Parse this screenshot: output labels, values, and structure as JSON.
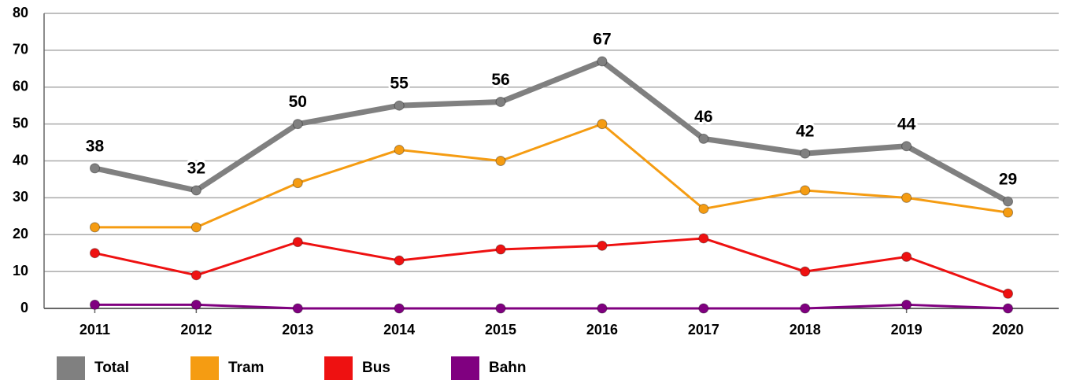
{
  "chart_data": {
    "type": "line",
    "categories": [
      "2011",
      "2012",
      "2013",
      "2014",
      "2015",
      "2016",
      "2017",
      "2018",
      "2019",
      "2020"
    ],
    "series": [
      {
        "name": "Total",
        "color": "#808080",
        "values": [
          38,
          32,
          50,
          55,
          56,
          67,
          46,
          42,
          44,
          29
        ]
      },
      {
        "name": "Tram",
        "color": "#f59c12",
        "values": [
          22,
          22,
          34,
          43,
          40,
          50,
          27,
          32,
          30,
          26
        ]
      },
      {
        "name": "Bus",
        "color": "#ee1111",
        "values": [
          15,
          9,
          18,
          13,
          16,
          17,
          19,
          10,
          14,
          4
        ]
      },
      {
        "name": "Bahn",
        "color": "#800080",
        "values": [
          1,
          1,
          0,
          0,
          0,
          0,
          0,
          0,
          1,
          0
        ]
      }
    ],
    "ylim": [
      0,
      80
    ],
    "yticks": [
      0,
      10,
      20,
      30,
      40,
      50,
      60,
      70,
      80
    ],
    "grid": true,
    "legend": "bottom"
  }
}
